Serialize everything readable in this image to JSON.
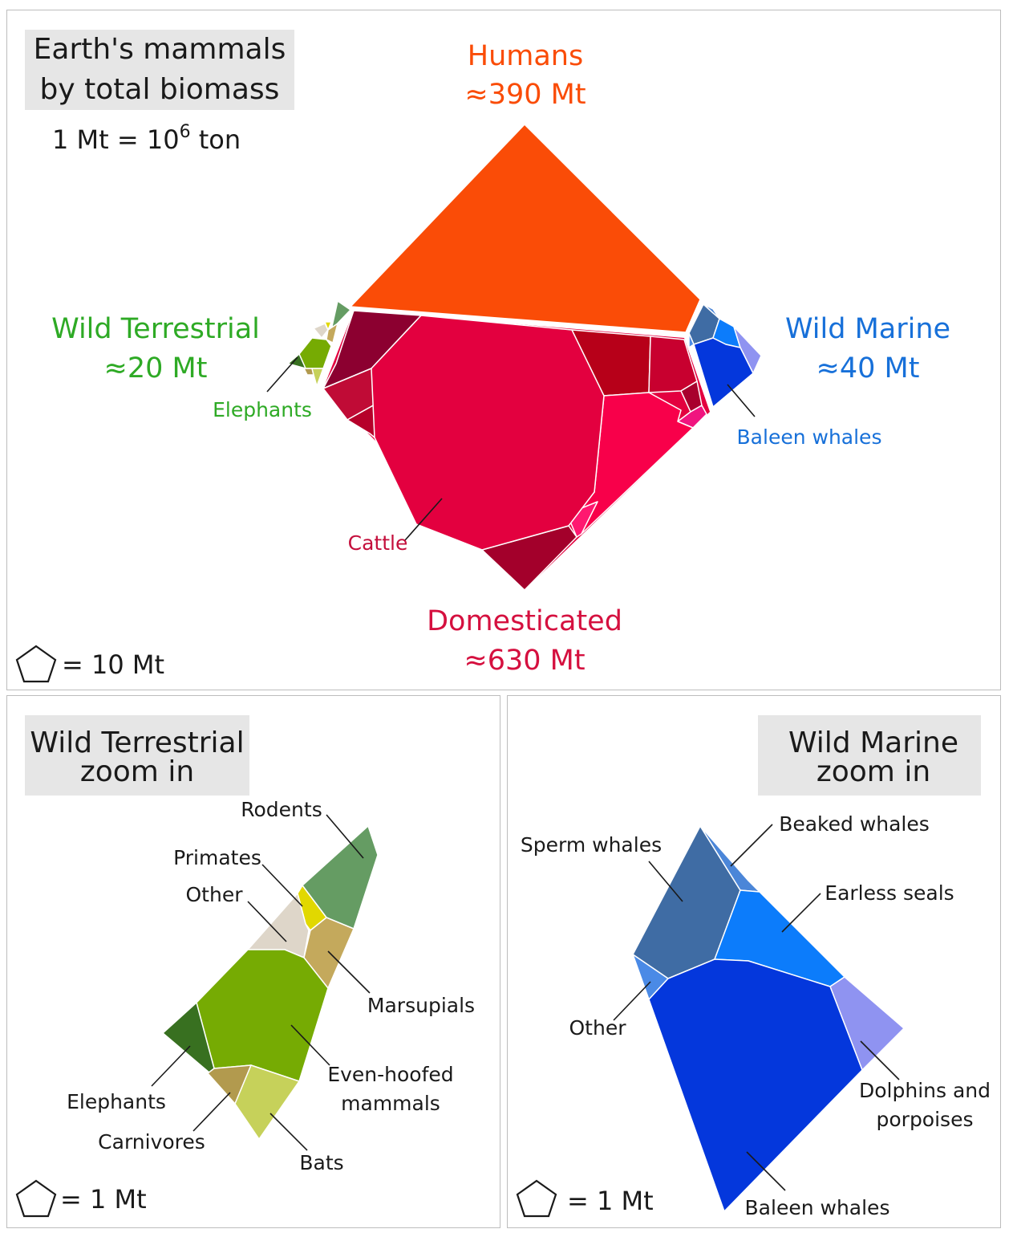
{
  "overview": {
    "title_line1": "Earth's mammals",
    "title_line2": "by total biomass",
    "unit_note_prefix": "1 Mt = 10",
    "unit_note_exp": "6",
    "unit_note_suffix": " ton",
    "scale": "= 10 Mt",
    "groups": {
      "humans": {
        "name": "Humans",
        "value": "≈390 Mt",
        "color": "#fa4c07"
      },
      "domesticated": {
        "name": "Domesticated",
        "value": "≈630 Mt",
        "color": "#d5103f"
      },
      "wild_terrestrial": {
        "name": "Wild Terrestrial",
        "value": "≈20 Mt",
        "color": "#2eaa25"
      },
      "wild_marine": {
        "name": "Wild Marine",
        "value": "≈40 Mt",
        "color": "#1770d9"
      }
    },
    "callouts": {
      "elephants": "Elephants",
      "cattle": "Cattle",
      "baleen_whales": "Baleen whales"
    }
  },
  "terrestrial_zoom": {
    "title_line1": "Wild Terrestrial",
    "title_line2": "zoom in",
    "scale": "= 1 Mt",
    "labels": {
      "rodents": "Rodents",
      "primates": "Primates",
      "other": "Other",
      "marsupials": "Marsupials",
      "even_hoofed_1": "Even-hoofed",
      "even_hoofed_2": "mammals",
      "elephants": "Elephants",
      "carnivores": "Carnivores",
      "bats": "Bats"
    }
  },
  "marine_zoom": {
    "title_line1": "Wild Marine",
    "title_line2": "zoom in",
    "scale": "= 1 Mt",
    "labels": {
      "beaked_whales": "Beaked whales",
      "sperm_whales": "Sperm whales",
      "earless_seals": "Earless seals",
      "other": "Other",
      "dolphins_1": "Dolphins and",
      "dolphins_2": "porpoises",
      "baleen_whales": "Baleen whales"
    }
  },
  "colors": {
    "humans": "#fa4c07",
    "cattle": "#e3003f",
    "rodents": "#659c63",
    "primates": "#e1d800",
    "terrestrial_other": "#ded6c9",
    "marsupials": "#c4a95c",
    "even_hoofed": "#76ab03",
    "elephants": "#387020",
    "carnivores": "#b29a4e",
    "bats": "#c6d15a",
    "sperm_whales": "#3f6ca4",
    "beaked_whales": "#4b86d8",
    "earless_seals": "#0c7cfb",
    "marine_other": "#4a8ae6",
    "dolphins": "#8f93f1",
    "baleen_whales": "#0437dc"
  }
}
